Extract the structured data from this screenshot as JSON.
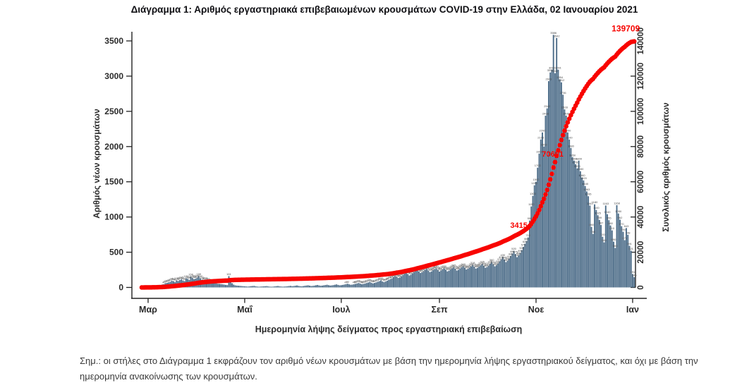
{
  "title": "Διάγραμμα 1: Αριθμός εργαστηριακά επιβεβαιωμένων κρουσμάτων COVID-19 στην Ελλάδα, 02 Ιανουαρίου 2021",
  "note": "Σημ.: οι στήλες στο Διάγραμμα 1 εκφράζουν τον αριθμό νέων κρουσμάτων με βάση την ημερομηνία λήψης εργαστηριακού δείγματος, και όχι με βάση την ημερομηνία ανακοίνωσης των κρουσμάτων.",
  "chart_data": {
    "type": "bar",
    "title": "Διάγραμμα 1: Αριθμός εργαστηριακά επιβεβαιωμένων κρουσμάτων COVID-19 στην Ελλάδα, 02 Ιανουαρίου 2021",
    "xlabel": "Ημερομηνία λήψης δείγματος προς εργαστηριακή επιβεβαίωση",
    "ylabel_left": "Αριθμός νέων κρουσμάτων",
    "ylabel_right": "Συνολικός αριθμός κρουσμάτων",
    "x_tick_labels": [
      "Μαρ",
      "Μαΐ",
      "Ιουλ",
      "Σεπ",
      "Νοε",
      "Ιαν"
    ],
    "x_tick_day_index": [
      4,
      65,
      126,
      188,
      249,
      310
    ],
    "left_axis": {
      "ticks": [
        0,
        500,
        1000,
        1500,
        2000,
        2500,
        3000,
        3500
      ],
      "range": [
        0,
        3500
      ]
    },
    "right_axis": {
      "ticks": [
        0,
        20000,
        40000,
        60000,
        80000,
        100000,
        120000,
        140000
      ],
      "range": [
        0,
        140000
      ]
    },
    "grid": false,
    "legend": "none",
    "bar_color": "#4d6d89",
    "line_color": "#f80400",
    "bar_label_color": "#4a4a4a",
    "annotation_color": "#f80400",
    "series": [
      {
        "name": "daily_new_cases",
        "type": "bar",
        "axis": "left",
        "values": [
          1,
          3,
          4,
          7,
          7,
          10,
          12,
          15,
          20,
          24,
          30,
          35,
          31,
          42,
          46,
          60,
          65,
          72,
          80,
          95,
          88,
          75,
          100,
          92,
          104,
          115,
          99,
          90,
          131,
          121,
          108,
          156,
          134,
          118,
          125,
          140,
          159,
          130,
          110,
          96,
          104,
          88,
          92,
          78,
          70,
          66,
          62,
          58,
          52,
          50,
          47,
          44,
          40,
          36,
          33,
          161,
          90,
          60,
          40,
          30,
          26,
          24,
          22,
          20,
          18,
          16,
          14,
          12,
          15,
          18,
          20,
          22,
          16,
          12,
          10,
          12,
          14,
          15,
          17,
          19,
          14,
          11,
          10,
          12,
          15,
          18,
          20,
          16,
          13,
          11,
          12,
          14,
          17,
          20,
          22,
          18,
          20,
          24,
          28,
          22,
          18,
          16,
          19,
          23,
          27,
          30,
          25,
          20,
          22,
          26,
          31,
          35,
          28,
          24,
          26,
          30,
          34,
          38,
          32,
          27,
          29,
          33,
          38,
          43,
          36,
          30,
          32,
          36,
          41,
          47,
          52,
          44,
          38,
          40,
          45,
          50,
          57,
          63,
          54,
          46,
          50,
          56,
          63,
          70,
          78,
          66,
          58,
          64,
          72,
          81,
          90,
          100,
          85,
          75,
          84,
          95,
          107,
          118,
          130,
          145,
          160,
          152,
          135,
          142,
          158,
          175,
          195,
          210,
          188,
          170,
          182,
          200,
          220,
          235,
          250,
          225,
          205,
          215,
          230,
          248,
          262,
          240,
          218,
          228,
          245,
          258,
          270,
          248,
          225,
          240,
          258,
          270,
          250,
          228,
          238,
          255,
          270,
          285,
          265,
          240,
          250,
          268,
          285,
          300,
          280,
          255,
          265,
          282,
          300,
          318,
          295,
          268,
          278,
          295,
          315,
          335,
          308,
          280,
          290,
          310,
          335,
          360,
          330,
          300,
          315,
          340,
          370,
          400,
          430,
          395,
          360,
          380,
          410,
          445,
          480,
          520,
          475,
          430,
          455,
          490,
          530,
          575,
          620,
          660,
          710,
          950,
          1150,
          1300,
          1450,
          1500,
          1700,
          1900,
          2100,
          2200,
          2000,
          2438,
          2542,
          2929,
          3052,
          3090,
          3586,
          3042,
          3542,
          3091,
          2954,
          2912,
          2736,
          2528,
          2439,
          2200,
          2100,
          1980,
          1850,
          1800,
          1750,
          1690,
          1800,
          1650,
          1560,
          1520,
          1440,
          1363,
          1295,
          1163,
          860,
          760,
          1180,
          1100,
          1025,
          959,
          887,
          720,
          640,
          1163,
          1040,
          955,
          880,
          810,
          650,
          560,
          1168,
          1050,
          962,
          870,
          790,
          671,
          843,
          748,
          591,
          521,
          191,
          146
        ]
      },
      {
        "name": "cumulative_cases",
        "type": "line",
        "axis": "right",
        "derived": "cumulative sum of daily_new_cases, normalized so final value equals 139709",
        "final_value": 139709
      }
    ],
    "annotations": [
      {
        "text": "34154",
        "value": 34154
      },
      {
        "text": "70691",
        "value": 70691
      },
      {
        "text": "139709",
        "value": 139709
      }
    ]
  }
}
